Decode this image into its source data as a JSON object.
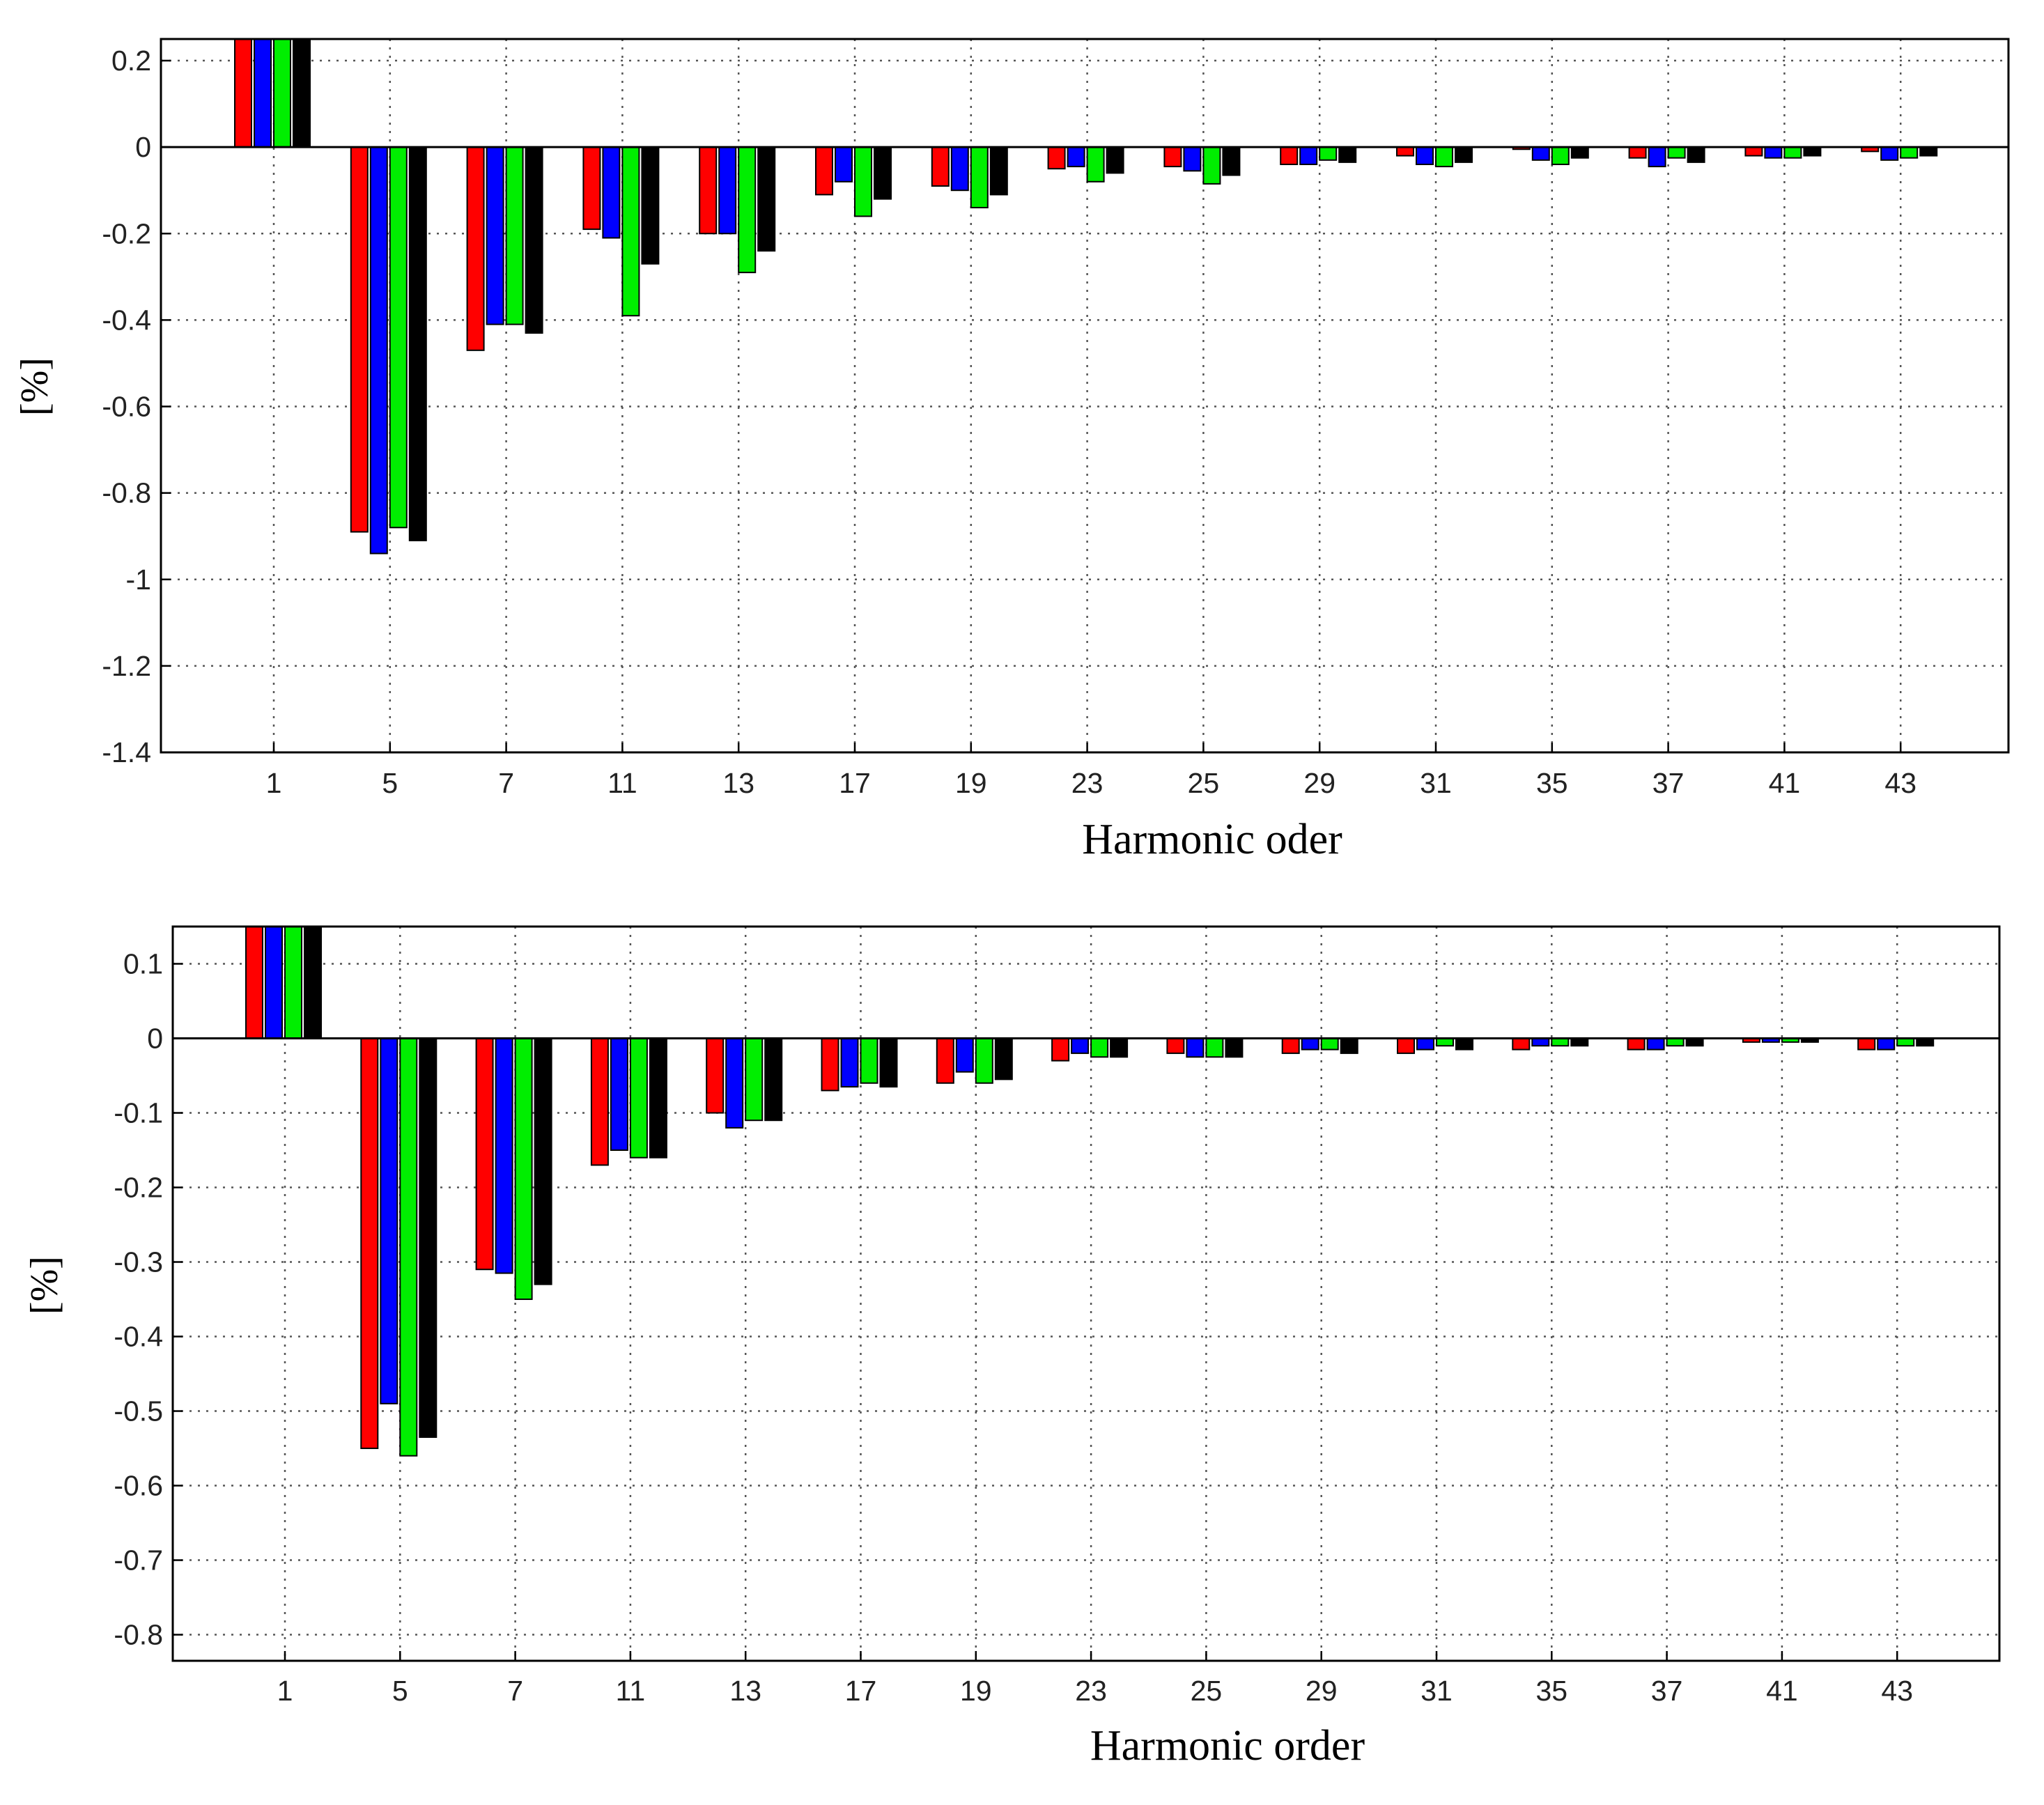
{
  "chart_data": [
    {
      "type": "bar",
      "categories": [
        "1",
        "5",
        "7",
        "11",
        "13",
        "17",
        "19",
        "23",
        "25",
        "29",
        "31",
        "35",
        "37",
        "41",
        "43"
      ],
      "colors": [
        "#ff0000",
        "#0000ff",
        "#00ee00",
        "#000000"
      ],
      "series": [
        {
          "values": [
            0.25,
            -0.89,
            -0.47,
            -0.19,
            -0.2,
            -0.11,
            -0.09,
            -0.05,
            -0.045,
            -0.04,
            -0.02,
            -0.005,
            -0.025,
            -0.02,
            -0.01
          ]
        },
        {
          "values": [
            0.25,
            -0.94,
            -0.41,
            -0.21,
            -0.2,
            -0.08,
            -0.1,
            -0.045,
            -0.055,
            -0.04,
            -0.04,
            -0.03,
            -0.045,
            -0.025,
            -0.03
          ]
        },
        {
          "values": [
            0.25,
            -0.88,
            -0.41,
            -0.39,
            -0.29,
            -0.16,
            -0.14,
            -0.08,
            -0.085,
            -0.03,
            -0.045,
            -0.04,
            -0.025,
            -0.025,
            -0.025
          ]
        },
        {
          "values": [
            0.25,
            -0.91,
            -0.43,
            -0.27,
            -0.24,
            -0.12,
            -0.11,
            -0.06,
            -0.065,
            -0.035,
            -0.035,
            -0.025,
            -0.035,
            -0.02,
            -0.02
          ]
        }
      ],
      "yticks": [
        "0.2",
        "0",
        "-0.2",
        "-0.4",
        "-0.6",
        "-0.8",
        "-1",
        "-1.2",
        "-1.4"
      ],
      "ylim": [
        -1.4,
        0.25
      ],
      "xlabel": "Harmonic oder",
      "ylabel": "[%]",
      "grid": true
    },
    {
      "type": "bar",
      "categories": [
        "1",
        "5",
        "7",
        "11",
        "13",
        "17",
        "19",
        "23",
        "25",
        "29",
        "31",
        "35",
        "37",
        "41",
        "43"
      ],
      "colors": [
        "#ff0000",
        "#0000ff",
        "#00ee00",
        "#000000"
      ],
      "series": [
        {
          "values": [
            0.15,
            -0.55,
            -0.31,
            -0.17,
            -0.1,
            -0.07,
            -0.06,
            -0.03,
            -0.02,
            -0.02,
            -0.02,
            -0.015,
            -0.015,
            -0.005,
            -0.015
          ]
        },
        {
          "values": [
            0.15,
            -0.49,
            -0.315,
            -0.15,
            -0.12,
            -0.065,
            -0.045,
            -0.02,
            -0.025,
            -0.015,
            -0.015,
            -0.01,
            -0.015,
            -0.005,
            -0.015
          ]
        },
        {
          "values": [
            0.15,
            -0.56,
            -0.35,
            -0.16,
            -0.11,
            -0.06,
            -0.06,
            -0.025,
            -0.025,
            -0.015,
            -0.01,
            -0.01,
            -0.01,
            -0.005,
            -0.01
          ]
        },
        {
          "values": [
            0.15,
            -0.535,
            -0.33,
            -0.16,
            -0.11,
            -0.065,
            -0.055,
            -0.025,
            -0.025,
            -0.02,
            -0.015,
            -0.01,
            -0.01,
            -0.005,
            -0.01
          ]
        }
      ],
      "yticks": [
        "0.1",
        "0",
        "-0.1",
        "-0.2",
        "-0.3",
        "-0.4",
        "-0.5",
        "-0.6",
        "-0.7",
        "-0.8"
      ],
      "ylim": [
        -0.835,
        0.15
      ],
      "xlabel": "Harmonic order",
      "ylabel": "[%]",
      "grid": true
    }
  ]
}
